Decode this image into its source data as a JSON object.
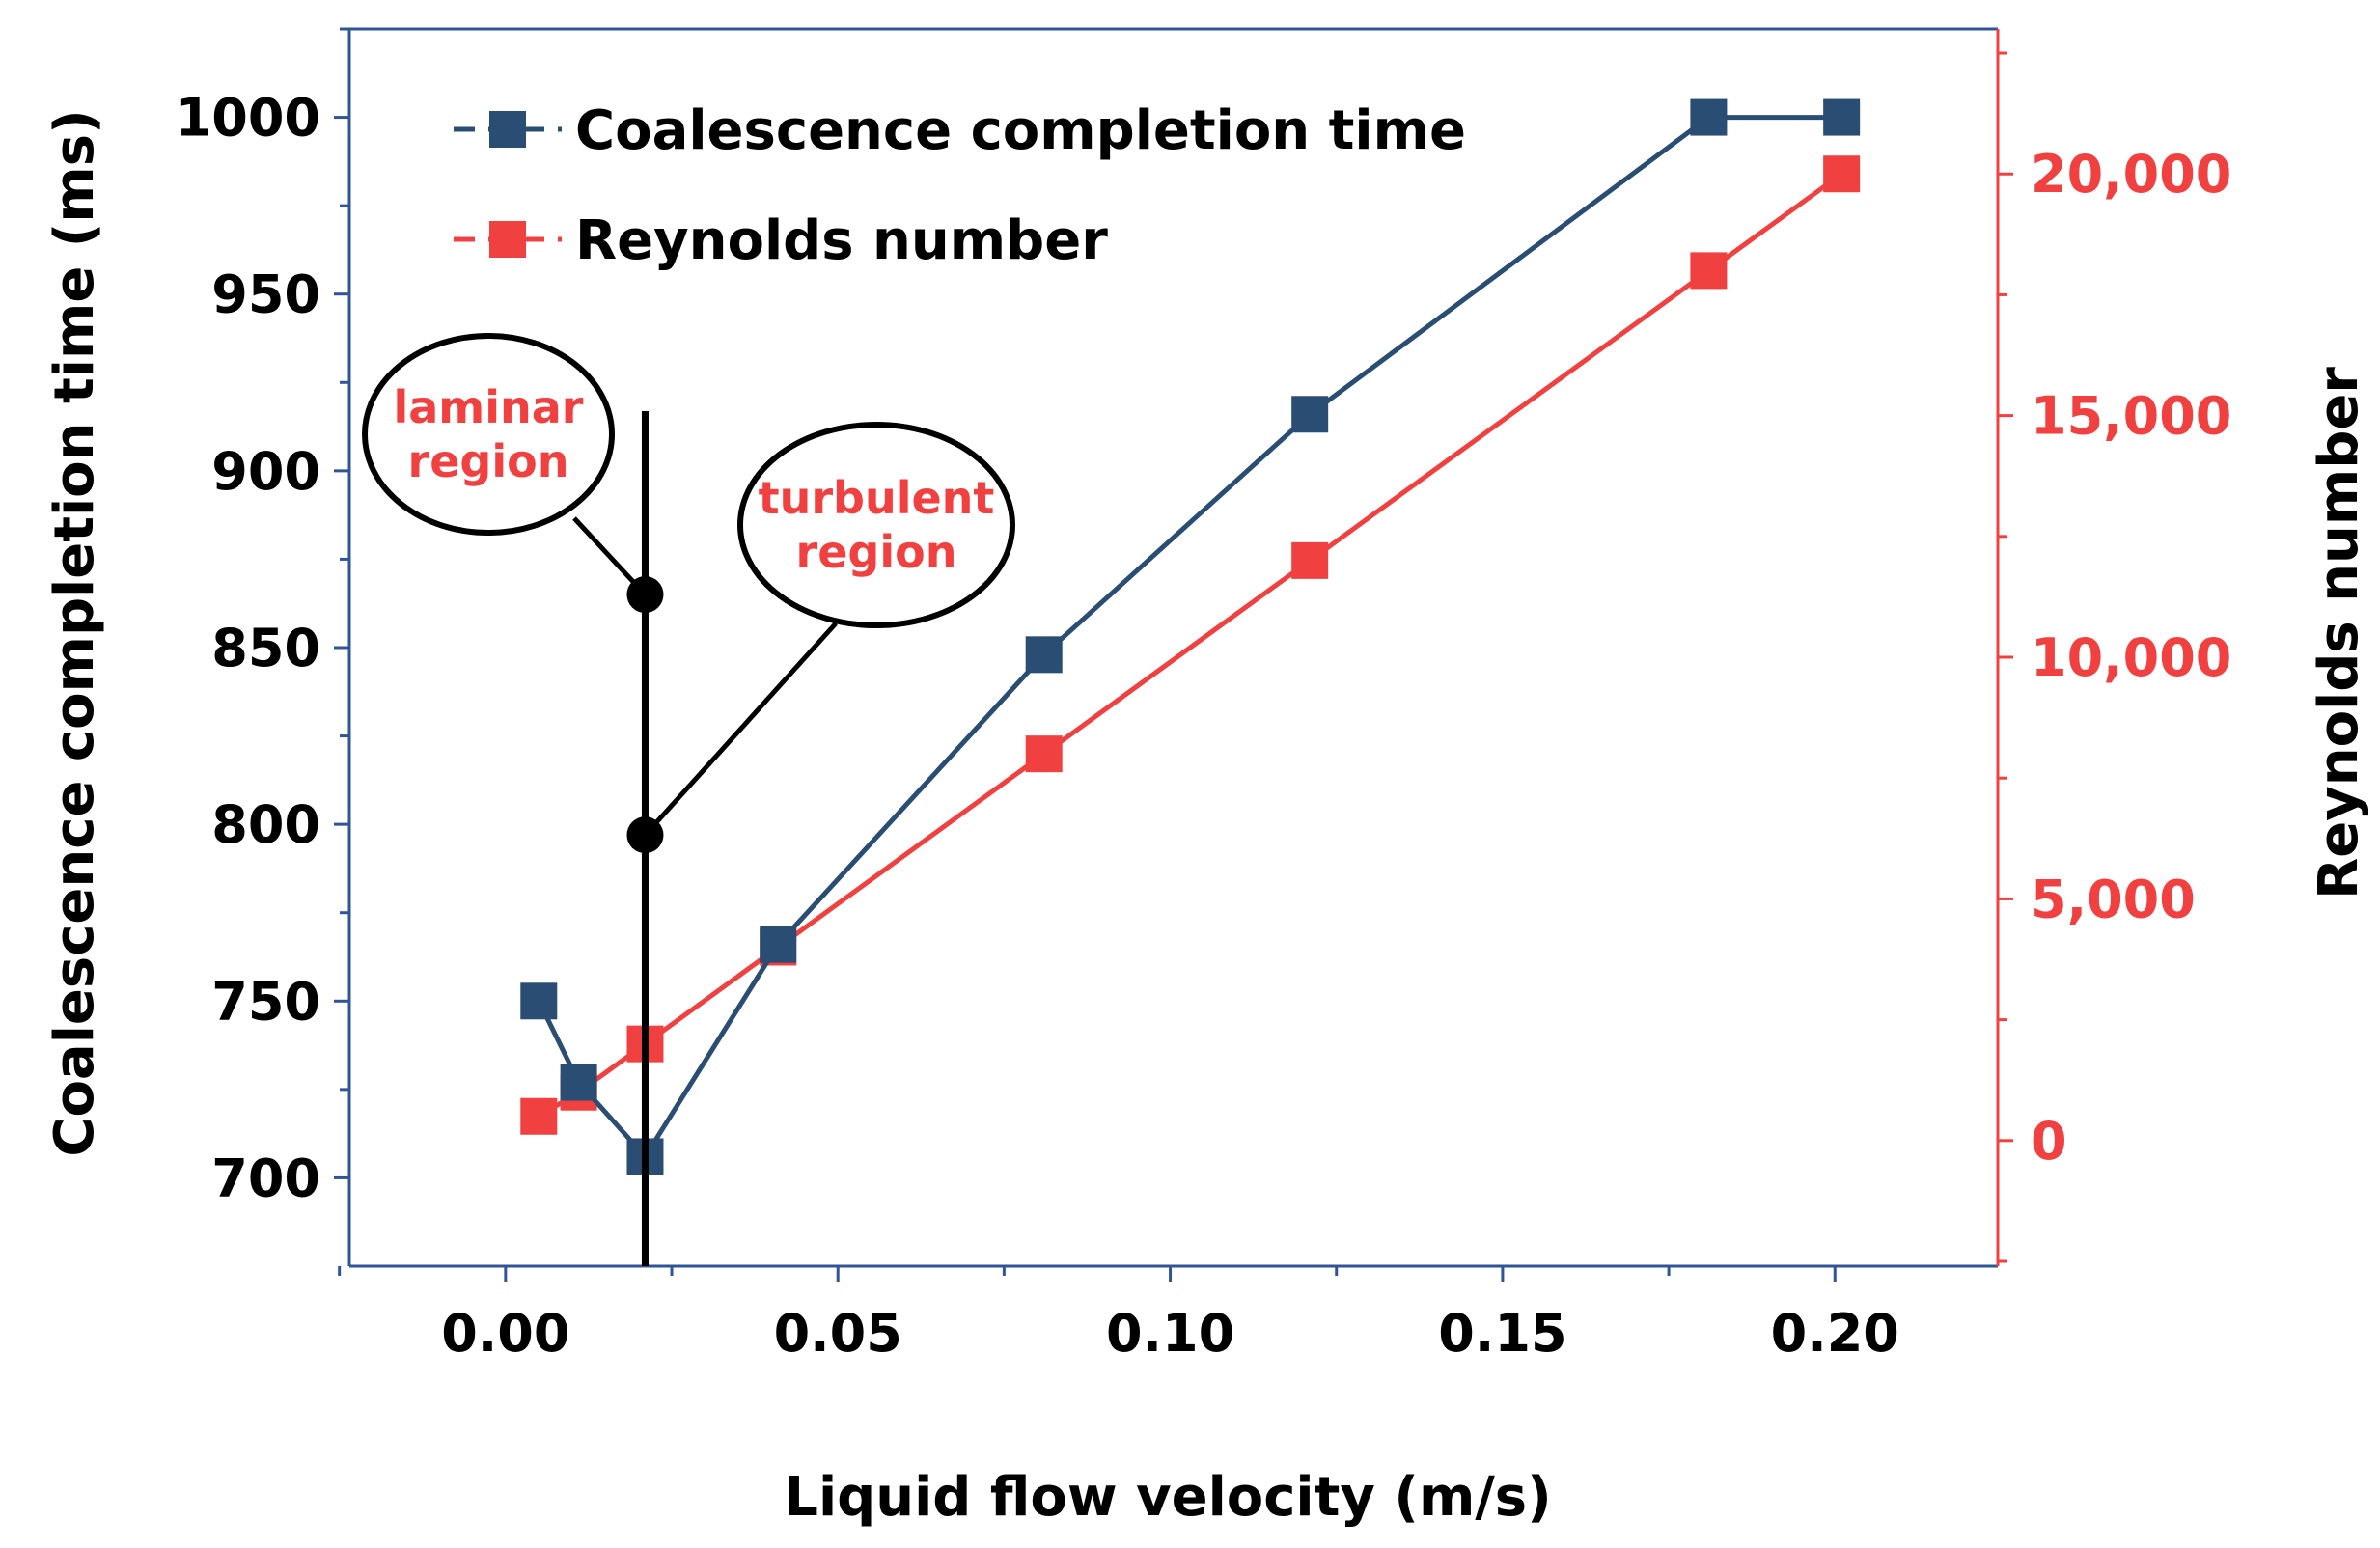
{
  "chart_data": {
    "type": "line",
    "xlabel": "Liquid flow velocity (m/s)",
    "xlim": [
      -0.0235,
      0.2245
    ],
    "xticks": [
      0.0,
      0.05,
      0.1,
      0.15,
      0.2
    ],
    "xtick_labels": [
      "0.00",
      "0.05",
      "0.10",
      "0.15",
      "0.20"
    ],
    "y_left": {
      "label": "Coalescence completion time (ms)",
      "lim": [
        675,
        1025
      ],
      "ticks": [
        700,
        750,
        800,
        850,
        900,
        950,
        1000
      ],
      "tick_labels": [
        "700",
        "750",
        "800",
        "850",
        "900",
        "950",
        "1000"
      ],
      "color": "#000000",
      "axis_color": "#2f5597"
    },
    "y_right": {
      "label": "Reynolds number",
      "lim": [
        -2600,
        23000
      ],
      "ticks": [
        0,
        5000,
        10000,
        15000,
        20000
      ],
      "tick_labels": [
        "0",
        "5,000",
        "10,000",
        "15,000",
        "20,000"
      ],
      "color": "#f04040"
    },
    "series": [
      {
        "name": "Coalescence completion time",
        "axis": "left",
        "color": "#2a4d74",
        "marker": "square",
        "x": [
          0.005,
          0.011,
          0.021,
          0.041,
          0.081,
          0.121,
          0.181,
          0.201
        ],
        "y": [
          750,
          727,
          706,
          766,
          848,
          916,
          1000,
          1000
        ]
      },
      {
        "name": "Reynolds number",
        "axis": "right",
        "color": "#f04040",
        "marker": "square",
        "x": [
          0.005,
          0.011,
          0.021,
          0.041,
          0.081,
          0.121,
          0.181,
          0.201
        ],
        "y": [
          500,
          1000,
          2000,
          4000,
          8000,
          12000,
          18000,
          20000
        ]
      }
    ],
    "legend": {
      "placement": "top-left"
    },
    "annotations": [
      {
        "lines": [
          "laminar",
          "region"
        ],
        "color": "#f04040"
      },
      {
        "lines": [
          "turbulent",
          "region"
        ],
        "color": "#f04040"
      }
    ],
    "divider": {
      "x": 0.021,
      "color": "#000000"
    }
  }
}
